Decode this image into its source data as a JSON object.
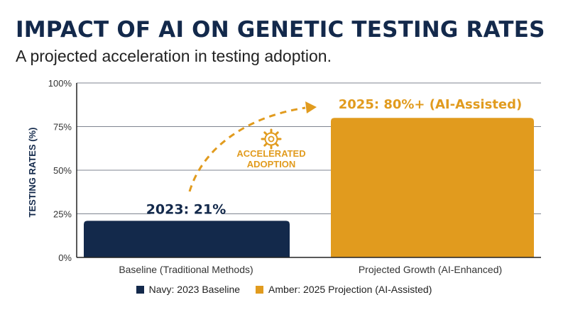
{
  "header": {
    "title": "IMPACT OF AI ON GENETIC TESTING RATES",
    "subtitle": "A projected acceleration in testing adoption."
  },
  "chart_data": {
    "type": "bar",
    "categories": [
      "Baseline (Traditional Methods)",
      "Projected Growth (AI-Enhanced)"
    ],
    "values": [
      21,
      80
    ],
    "data_labels": [
      "2023: 21%",
      "2025: 80%+ (AI-Assisted)"
    ],
    "ylabel": "TESTING RATES (%)",
    "ylim": [
      0,
      100
    ],
    "yticks": [
      0,
      25,
      50,
      75,
      100
    ],
    "ytick_labels": [
      "0%",
      "25%",
      "50%",
      "75%",
      "100%"
    ],
    "grid": true,
    "colors": [
      "#13294b",
      "#e19b1e"
    ],
    "annotation": [
      "ACCELERATED",
      "ADOPTION"
    ],
    "legend": [
      {
        "label": "Navy: 2023 Baseline",
        "color": "#13294b"
      },
      {
        "label": "Amber: 2025 Projection (AI-Assisted)",
        "color": "#e19b1e"
      }
    ]
  },
  "icons": {
    "annotation": "gear-icon"
  }
}
